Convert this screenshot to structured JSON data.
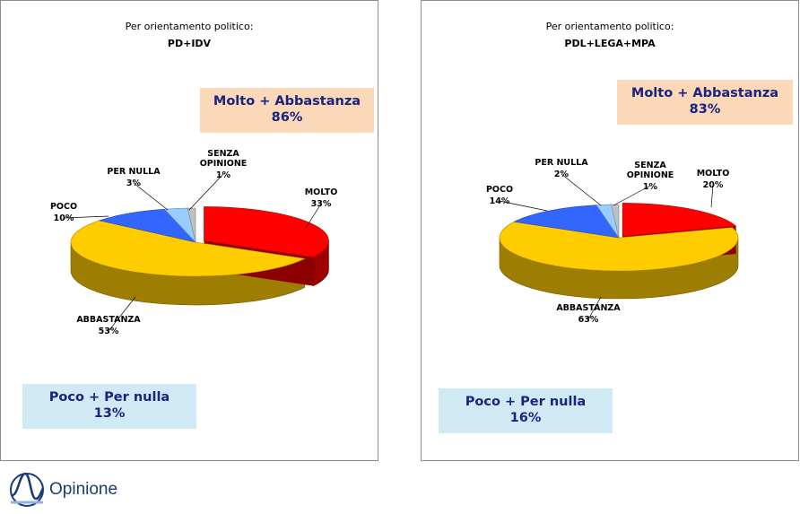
{
  "brand": {
    "name": "Opinione"
  },
  "chart_data": [
    {
      "type": "pie",
      "title": "Per orientamento politico:",
      "subtitle": "PD+IDV",
      "slices": [
        {
          "label": "MOLTO",
          "value": 33,
          "display": "33%",
          "color": "#ff0000"
        },
        {
          "label": "ABBASTANZA",
          "value": 53,
          "display": "53%",
          "color": "#ffcc00"
        },
        {
          "label": "POCO",
          "value": 10,
          "display": "10%",
          "color": "#3366ff"
        },
        {
          "label": "PER NULLA",
          "value": 3,
          "display": "3%",
          "color": "#99ccff"
        },
        {
          "label": "SENZA OPINIONE",
          "label_lines": [
            "SENZA",
            "OPINIONE"
          ],
          "value": 1,
          "display": "1%",
          "color": "#c0c0c0"
        }
      ],
      "summary_high": {
        "label": "Molto + Abbastanza",
        "value": "86%"
      },
      "summary_low": {
        "label": "Poco + Per nulla",
        "value": "13%"
      }
    },
    {
      "type": "pie",
      "title": "Per orientamento politico:",
      "subtitle": "PDL+LEGA+MPA",
      "slices": [
        {
          "label": "MOLTO",
          "value": 20,
          "display": "20%",
          "color": "#ff0000"
        },
        {
          "label": "ABBASTANZA",
          "value": 63,
          "display": "63%",
          "color": "#ffcc00"
        },
        {
          "label": "POCO",
          "value": 14,
          "display": "14%",
          "color": "#3366ff"
        },
        {
          "label": "PER NULLA",
          "value": 2,
          "display": "2%",
          "color": "#99ccff"
        },
        {
          "label": "SENZA OPINIONE",
          "label_lines": [
            "SENZA",
            "OPINIONE"
          ],
          "value": 1,
          "display": "1%",
          "color": "#c0c0c0"
        }
      ],
      "summary_high": {
        "label": "Molto + Abbastanza",
        "value": "83%"
      },
      "summary_low": {
        "label": "Poco + Per nulla",
        "value": "16%"
      }
    }
  ]
}
